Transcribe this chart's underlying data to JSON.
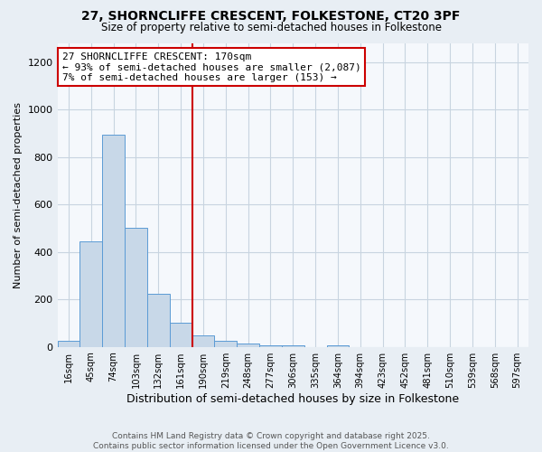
{
  "title_line1": "27, SHORNCLIFFE CRESCENT, FOLKESTONE, CT20 3PF",
  "title_line2": "Size of property relative to semi-detached houses in Folkestone",
  "xlabel": "Distribution of semi-detached houses by size in Folkestone",
  "ylabel": "Number of semi-detached properties",
  "bin_labels": [
    "16sqm",
    "45sqm",
    "74sqm",
    "103sqm",
    "132sqm",
    "161sqm",
    "190sqm",
    "219sqm",
    "248sqm",
    "277sqm",
    "306sqm",
    "335sqm",
    "364sqm",
    "394sqm",
    "423sqm",
    "452sqm",
    "481sqm",
    "510sqm",
    "539sqm",
    "568sqm",
    "597sqm"
  ],
  "bar_heights": [
    25,
    445,
    895,
    500,
    225,
    100,
    50,
    27,
    15,
    5,
    5,
    0,
    5,
    0,
    0,
    0,
    0,
    0,
    0,
    0,
    0
  ],
  "bar_color": "#c8d8e8",
  "bar_edge_color": "#5b9bd5",
  "vline_x": 5.5,
  "vline_color": "#cc0000",
  "annotation_line1": "27 SHORNCLIFFE CRESCENT: 170sqm",
  "annotation_line2": "← 93% of semi-detached houses are smaller (2,087)",
  "annotation_line3": "7% of semi-detached houses are larger (153) →",
  "annotation_box_edge": "#cc0000",
  "ylim": [
    0,
    1280
  ],
  "yticks": [
    0,
    200,
    400,
    600,
    800,
    1000,
    1200
  ],
  "footer_line1": "Contains HM Land Registry data © Crown copyright and database right 2025.",
  "footer_line2": "Contains public sector information licensed under the Open Government Licence v3.0.",
  "bg_color": "#e8eef4",
  "plot_bg_color": "#f5f8fc",
  "grid_color": "#c8d4e0",
  "title_fontsize": 10,
  "subtitle_fontsize": 8.5
}
